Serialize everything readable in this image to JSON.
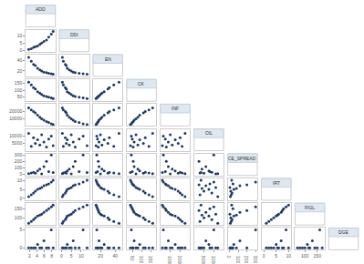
{
  "chart_data": {
    "type": "scatter_matrix",
    "color": "#1f3a68",
    "grid": false,
    "marker": "circle",
    "variables": [
      {
        "name": "ADD",
        "values": [
          1.8,
          2.5,
          3.1,
          3.6,
          4.2,
          4.8,
          5.3,
          5.9,
          6.6,
          7.2,
          7.9,
          8.4
        ],
        "lim": [
          1,
          9
        ],
        "ticks": [
          2,
          4,
          6,
          8
        ]
      },
      {
        "name": "DDI",
        "values": [
          0.5,
          1,
          2,
          2.5,
          3,
          4,
          5,
          6,
          7,
          9,
          11,
          13
        ],
        "lim": [
          -1,
          14
        ],
        "ticks": [
          0,
          5,
          10
        ]
      },
      {
        "name": "EN",
        "values": [
          45,
          38,
          32,
          30,
          25,
          22,
          20,
          18,
          17,
          16,
          15,
          14
        ],
        "lim": [
          10,
          50
        ],
        "ticks": [
          20,
          40
        ]
      },
      {
        "name": "CK",
        "values": [
          160,
          140,
          120,
          110,
          90,
          80,
          70,
          60,
          55,
          50,
          45,
          40
        ],
        "lim": [
          20,
          180
        ],
        "ticks": [
          50,
          100,
          150
        ]
      },
      {
        "name": "INF",
        "values": [
          25000,
          22000,
          20000,
          18000,
          15000,
          12000,
          10000,
          8000,
          6000,
          5000,
          3000,
          2000
        ],
        "lim": [
          0,
          30000
        ],
        "ticks": [
          10000,
          20000
        ]
      },
      {
        "name": "OIL",
        "values": [
          12000,
          3000,
          9000,
          5000,
          7500,
          4000,
          11000,
          6000,
          2500,
          8000,
          10000,
          3500
        ],
        "lim": [
          0,
          15000
        ],
        "ticks": [
          5000,
          10000
        ]
      },
      {
        "name": "CE_SPREAD",
        "values": [
          10,
          20,
          30,
          15,
          50,
          80,
          5,
          120,
          200,
          40,
          300,
          25
        ],
        "lim": [
          -20,
          320
        ],
        "ticks": [
          0,
          100,
          200,
          300
        ]
      },
      {
        "name": "IRT",
        "values": [
          1,
          2,
          3,
          4,
          5,
          5.5,
          6,
          7,
          7.5,
          8,
          9,
          10
        ],
        "lim": [
          -1,
          11
        ],
        "ticks": [
          0,
          5,
          10
        ]
      },
      {
        "name": "FIGL",
        "values": [
          70,
          80,
          90,
          100,
          110,
          115,
          120,
          130,
          140,
          150,
          160,
          170
        ],
        "lim": [
          60,
          180
        ],
        "ticks": [
          100,
          150
        ]
      },
      {
        "name": "DGE",
        "values": [
          0,
          0,
          0,
          0,
          1,
          0,
          0,
          2,
          0,
          0,
          5,
          0
        ],
        "lim": [
          -0.5,
          5.5
        ],
        "ticks": [
          0,
          5
        ]
      }
    ]
  }
}
